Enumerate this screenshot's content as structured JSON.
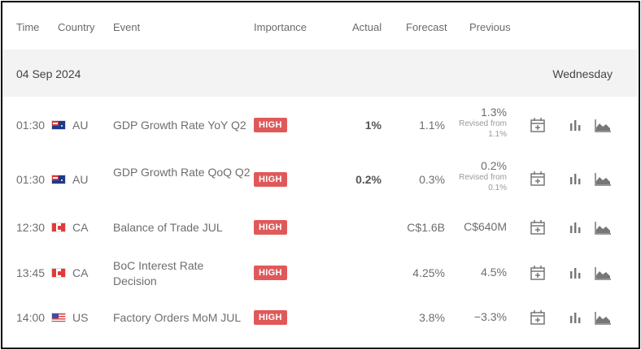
{
  "header": {
    "time": "Time",
    "country": "Country",
    "event": "Event",
    "importance": "Importance",
    "actual": "Actual",
    "forecast": "Forecast",
    "previous": "Previous"
  },
  "date_bar": {
    "date": "04 Sep 2024",
    "weekday": "Wednesday"
  },
  "rows": [
    {
      "time": "01:30",
      "country": "AU",
      "event": "GDP Growth Rate YoY Q2",
      "importance": "HIGH",
      "actual": "1%",
      "forecast": "1.1%",
      "previous": "1.3%",
      "revised_label": "Revised from",
      "revised_value": "1.1%"
    },
    {
      "time": "01:30",
      "country": "AU",
      "event": "GDP Growth Rate QoQ Q2",
      "importance": "HIGH",
      "actual": "0.2%",
      "forecast": "0.3%",
      "previous": "0.2%",
      "revised_label": "Revised from",
      "revised_value": "0.1%"
    },
    {
      "time": "12:30",
      "country": "CA",
      "event": "Balance of Trade JUL",
      "importance": "HIGH",
      "actual": "",
      "forecast": "C$1.6B",
      "previous": "C$640M"
    },
    {
      "time": "13:45",
      "country": "CA",
      "event": "BoC Interest Rate Decision",
      "importance": "HIGH",
      "actual": "",
      "forecast": "4.25%",
      "previous": "4.5%"
    },
    {
      "time": "14:00",
      "country": "US",
      "event": "Factory Orders MoM JUL",
      "importance": "HIGH",
      "actual": "",
      "forecast": "3.8%",
      "previous": "−3.3%"
    }
  ],
  "icons": {
    "calendar": "calendar-add-icon",
    "bar_chart": "bar-chart-icon",
    "area_chart": "area-chart-icon"
  },
  "colors": {
    "high_badge": "#e0595a",
    "date_bar_bg": "#f3f3f3"
  }
}
